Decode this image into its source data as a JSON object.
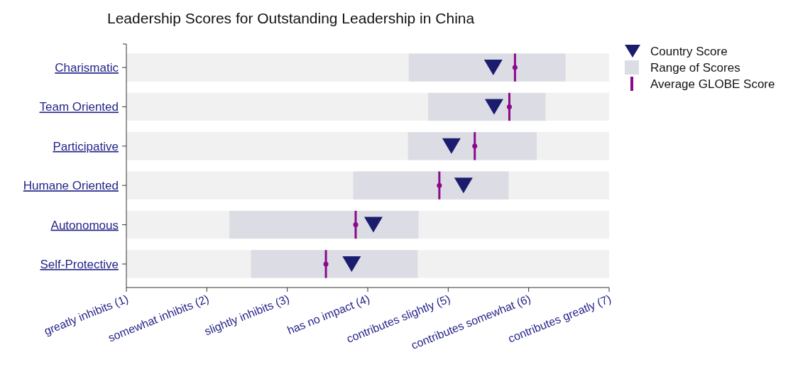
{
  "chart_data": {
    "type": "bar",
    "orientation": "horizontal",
    "title": "Leadership Scores for Outstanding Leadership in China",
    "categories": [
      "Charismatic",
      "Team Oriented",
      "Participative",
      "Humane Oriented",
      "Autonomous",
      "Self-Protective"
    ],
    "series": [
      {
        "type": "bar",
        "color": "#f1f1f1",
        "base": [
          1,
          1,
          1,
          1,
          1,
          1
        ],
        "values": [
          6,
          6,
          6,
          6,
          6,
          6
        ]
      },
      {
        "name": "Country Score",
        "type": "scatter",
        "marker": "triangle",
        "color": "#1c1c6e",
        "values": [
          5.56,
          5.57,
          5.04,
          5.19,
          4.07,
          3.8
        ]
      },
      {
        "name": "Range of Scores",
        "type": "bar",
        "color": "#dcdce4",
        "base": [
          4.51,
          4.75,
          4.5,
          3.82,
          2.28,
          2.55
        ],
        "values": [
          1.95,
          1.46,
          1.6,
          1.93,
          2.35,
          2.07
        ]
      },
      {
        "name": "Average GLOBE Score",
        "type": "scatter",
        "color": "#8b0a8b",
        "values": [
          5.83,
          5.76,
          5.33,
          4.89,
          3.85,
          3.48
        ]
      }
    ],
    "xlim": [
      1,
      7
    ],
    "xticks": [
      {
        "value": 1,
        "label": "greatly inhibits (1)"
      },
      {
        "value": 2,
        "label": "somewhat inhibits (2)"
      },
      {
        "value": 3,
        "label": "slightly inhibits (3)"
      },
      {
        "value": 4,
        "label": "has no impact (4)"
      },
      {
        "value": 5,
        "label": "contributes slightly (5)"
      },
      {
        "value": 6,
        "label": "contributes somewhat (6)"
      },
      {
        "value": 7,
        "label": "contributes greatly (7)"
      }
    ],
    "legend": "right"
  }
}
